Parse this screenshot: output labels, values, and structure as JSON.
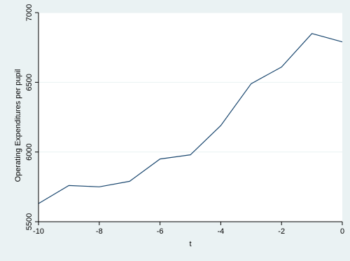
{
  "chart_data": {
    "type": "line",
    "title": "",
    "xlabel": "t",
    "ylabel": "Operating Expenditures per pupil",
    "x": [
      -10,
      -9,
      -8,
      -7,
      -6,
      -5,
      -4,
      -3,
      -2,
      -1,
      0
    ],
    "series": [
      {
        "values": [
          5630,
          5760,
          5750,
          5790,
          5950,
          5980,
          6190,
          6490,
          6610,
          6850,
          6790
        ],
        "color": "#1a476f"
      }
    ],
    "xlim": [
      -10,
      0
    ],
    "ylim": [
      5500,
      7000
    ],
    "xticks": [
      -10,
      -8,
      -6,
      -4,
      -2,
      0
    ],
    "xtick_labels": [
      "-10",
      "-8",
      "-6",
      "-4",
      "-2",
      "0"
    ],
    "yticks": [
      5500,
      6000,
      6500,
      7000
    ],
    "ytick_labels": [
      "5500",
      "6000",
      "6500",
      "7000"
    ],
    "grid": "horizontal",
    "legend": false,
    "colors": {
      "outer_background": "#eaf2f3",
      "plot_background": "#ffffff",
      "gridline": "#eaf2f3",
      "axis": "#000000"
    }
  }
}
